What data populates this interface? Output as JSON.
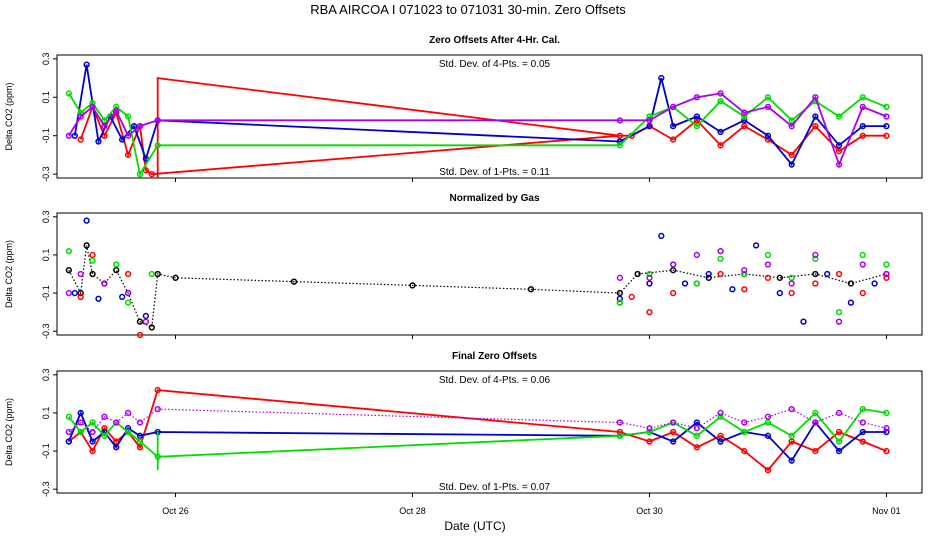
{
  "chart_data": {
    "type": "line",
    "title": "RBA   AIRCOA I   071023 to 071031   30-min. Zero Offsets",
    "xlabel": "Date (UTC)",
    "x_range": [
      25.0,
      32.3
    ],
    "x_ticks": [
      {
        "value": 26,
        "label": "Oct 26"
      },
      {
        "value": 28,
        "label": "Oct 28"
      },
      {
        "value": 30,
        "label": "Oct 30"
      },
      {
        "value": 32,
        "label": "Nov 01"
      }
    ],
    "y_ticks": [
      {
        "value": 0.3,
        "label": "0.3"
      },
      {
        "value": 0.1,
        "label": "0.1"
      },
      {
        "value": -0.1,
        "label": "-0.1"
      },
      {
        "value": -0.3,
        "label": "-0.3"
      }
    ],
    "colors": {
      "red": "#ff0000",
      "blue": "#0000cc",
      "green": "#00dd00",
      "purple": "#aa00ee",
      "black": "#000000"
    },
    "panels": [
      {
        "title": "Zero Offsets After 4-Hr. Cal.",
        "ylabel": "Delta CO2 (ppm)",
        "ylim": [
          -0.32,
          0.32
        ],
        "annotations": {
          "top": "Std. Dev. of 4-Pts. =  0.05",
          "bottom": "Std. Dev. of 1-Pts. =  0.11"
        },
        "series": [
          {
            "name": "red",
            "color": "red",
            "x": [
              25.2,
              25.3,
              25.4,
              25.5,
              25.6,
              25.7,
              25.75,
              25.8,
              29.75,
              29.85,
              30.0,
              30.2,
              30.4,
              30.6,
              30.8,
              31.0,
              31.2,
              31.4,
              31.6,
              31.8,
              32.0
            ],
            "y": [
              -0.12,
              0.05,
              -0.1,
              0.02,
              -0.2,
              -0.05,
              -0.28,
              -0.3,
              -0.1,
              -0.1,
              -0.05,
              -0.12,
              -0.02,
              -0.15,
              -0.05,
              -0.12,
              -0.2,
              -0.05,
              -0.18,
              -0.1,
              -0.1
            ]
          },
          {
            "name": "red-jump",
            "color": "red",
            "x": [
              25.85,
              25.85,
              29.75
            ],
            "y": [
              -0.32,
              0.2,
              -0.1
            ]
          },
          {
            "name": "blue",
            "color": "blue",
            "x": [
              25.15,
              25.25,
              25.35,
              25.45,
              25.55,
              25.65,
              25.75,
              25.85,
              29.75,
              30.0,
              30.1,
              30.2,
              30.4,
              30.6,
              30.8,
              31.0,
              31.2,
              31.4,
              31.6,
              31.8,
              32.0
            ],
            "y": [
              -0.1,
              0.27,
              -0.13,
              0.0,
              -0.12,
              -0.05,
              -0.22,
              -0.02,
              -0.13,
              -0.05,
              0.2,
              -0.05,
              0.0,
              -0.08,
              -0.02,
              -0.1,
              -0.25,
              0.0,
              -0.15,
              -0.05,
              -0.05
            ]
          },
          {
            "name": "green",
            "color": "green",
            "x": [
              25.1,
              25.2,
              25.3,
              25.4,
              25.5,
              25.6,
              25.7,
              25.85,
              29.75,
              30.0,
              30.2,
              30.4,
              30.6,
              30.8,
              31.0,
              31.2,
              31.4,
              31.6,
              31.8,
              32.0
            ],
            "y": [
              0.12,
              0.02,
              0.07,
              -0.02,
              0.05,
              0.0,
              -0.3,
              -0.15,
              -0.15,
              0.0,
              0.05,
              -0.05,
              0.08,
              0.0,
              0.1,
              -0.02,
              0.08,
              0.0,
              0.1,
              0.05
            ]
          },
          {
            "name": "purple",
            "color": "purple",
            "x": [
              25.1,
              25.2,
              25.3,
              25.4,
              25.5,
              25.6,
              25.7,
              25.85,
              29.75,
              30.0,
              30.2,
              30.4,
              30.6,
              30.8,
              31.0,
              31.2,
              31.4,
              31.6,
              31.8,
              32.0
            ],
            "y": [
              -0.1,
              0.0,
              0.05,
              -0.05,
              0.03,
              -0.1,
              -0.05,
              -0.02,
              -0.02,
              -0.02,
              0.05,
              0.1,
              0.12,
              0.02,
              0.05,
              -0.05,
              0.1,
              -0.25,
              0.05,
              0.0
            ]
          }
        ]
      },
      {
        "title": "Normalized by Gas",
        "ylabel": "Delta CO2 (ppm)",
        "ylim": [
          -0.32,
          0.32
        ],
        "annotations": {
          "top": "",
          "bottom": ""
        },
        "series": [
          {
            "name": "black",
            "color": "black",
            "dotted": true,
            "x": [
              25.1,
              25.2,
              25.25,
              25.3,
              25.4,
              25.5,
              25.6,
              25.7,
              25.8,
              25.85,
              26.0,
              27.0,
              28.0,
              29.0,
              29.75,
              29.9,
              30.2,
              30.5,
              30.8,
              31.1,
              31.4,
              31.7,
              32.0
            ],
            "y": [
              0.02,
              -0.1,
              0.15,
              0.0,
              -0.05,
              0.02,
              -0.1,
              -0.25,
              -0.28,
              0.0,
              -0.02,
              -0.04,
              -0.06,
              -0.08,
              -0.1,
              0.0,
              0.02,
              -0.02,
              0.0,
              -0.02,
              0.0,
              -0.05,
              0.0
            ]
          },
          {
            "name": "red",
            "color": "red",
            "markers_only": true,
            "x": [
              25.2,
              25.3,
              25.4,
              25.6,
              25.7,
              29.75,
              29.85,
              30.0,
              30.2,
              30.4,
              30.6,
              30.8,
              31.0,
              31.2,
              31.4,
              31.6,
              31.8,
              32.0
            ],
            "y": [
              -0.12,
              0.1,
              -0.05,
              0.0,
              -0.32,
              -0.15,
              -0.12,
              -0.2,
              -0.1,
              -0.05,
              0.0,
              -0.08,
              -0.02,
              -0.1,
              -0.05,
              0.0,
              -0.1,
              -0.02
            ]
          },
          {
            "name": "blue",
            "color": "blue",
            "markers_only": true,
            "x": [
              25.15,
              25.25,
              25.35,
              25.55,
              25.75,
              29.75,
              30.0,
              30.1,
              30.3,
              30.5,
              30.7,
              30.9,
              31.1,
              31.3,
              31.5,
              31.7,
              31.9
            ],
            "y": [
              -0.1,
              0.28,
              -0.13,
              -0.12,
              -0.22,
              -0.13,
              -0.05,
              0.2,
              -0.05,
              0.0,
              -0.08,
              0.15,
              -0.1,
              -0.25,
              0.0,
              -0.15,
              -0.05
            ]
          },
          {
            "name": "green",
            "color": "green",
            "markers_only": true,
            "x": [
              25.1,
              25.3,
              25.5,
              25.6,
              25.8,
              29.75,
              30.0,
              30.2,
              30.4,
              30.6,
              30.8,
              31.0,
              31.2,
              31.4,
              31.6,
              31.8,
              32.0
            ],
            "y": [
              0.12,
              0.07,
              0.05,
              -0.15,
              0.0,
              -0.15,
              0.0,
              0.05,
              -0.05,
              0.08,
              0.0,
              0.1,
              -0.02,
              0.08,
              -0.2,
              0.1,
              0.05
            ]
          },
          {
            "name": "purple",
            "color": "purple",
            "markers_only": true,
            "x": [
              25.1,
              25.2,
              25.4,
              25.6,
              25.75,
              29.75,
              30.0,
              30.2,
              30.4,
              30.6,
              30.8,
              31.0,
              31.2,
              31.4,
              31.6,
              31.8,
              32.0
            ],
            "y": [
              -0.1,
              0.0,
              -0.05,
              -0.1,
              -0.25,
              -0.02,
              -0.02,
              0.05,
              0.1,
              0.12,
              0.02,
              0.05,
              -0.05,
              0.1,
              -0.25,
              0.05,
              0.0
            ]
          }
        ]
      },
      {
        "title": "Final Zero Offsets",
        "ylabel": "Delta CO2 (ppm)",
        "ylim": [
          -0.32,
          0.32
        ],
        "annotations": {
          "top": "Std. Dev. of 4-Pts. =  0.06",
          "bottom": "Std. Dev. of 1-Pts. =  0.07"
        },
        "series": [
          {
            "name": "red",
            "color": "red",
            "x": [
              25.1,
              25.2,
              25.3,
              25.4,
              25.5,
              25.6,
              25.7,
              25.85,
              29.75,
              30.0,
              30.2,
              30.4,
              30.6,
              30.8,
              31.0,
              31.2,
              31.4,
              31.6,
              31.8,
              32.0
            ],
            "y": [
              -0.05,
              0.0,
              -0.1,
              0.02,
              -0.05,
              0.0,
              -0.08,
              0.22,
              0.0,
              -0.05,
              0.0,
              -0.08,
              -0.02,
              -0.1,
              -0.2,
              -0.05,
              -0.1,
              0.0,
              -0.05,
              -0.1
            ]
          },
          {
            "name": "blue",
            "color": "blue",
            "x": [
              25.1,
              25.2,
              25.3,
              25.4,
              25.5,
              25.6,
              25.7,
              25.85,
              29.75,
              30.0,
              30.2,
              30.4,
              30.6,
              30.8,
              31.0,
              31.2,
              31.4,
              31.6,
              31.8,
              32.0
            ],
            "y": [
              -0.05,
              0.1,
              -0.05,
              0.0,
              -0.08,
              0.02,
              -0.02,
              0.0,
              -0.02,
              0.0,
              -0.05,
              0.05,
              -0.05,
              0.0,
              -0.02,
              -0.15,
              0.05,
              -0.1,
              0.0,
              0.0
            ]
          },
          {
            "name": "green",
            "color": "green",
            "x": [
              25.1,
              25.2,
              25.3,
              25.4,
              25.5,
              25.6,
              25.7,
              25.85,
              29.75,
              30.0,
              30.2,
              30.4,
              30.6,
              30.8,
              31.0,
              31.2,
              31.4,
              31.6,
              31.8,
              32.0
            ],
            "y": [
              0.08,
              0.0,
              0.05,
              -0.02,
              0.05,
              0.0,
              -0.05,
              -0.13,
              -0.02,
              0.0,
              0.05,
              -0.02,
              0.08,
              0.0,
              0.05,
              -0.02,
              0.1,
              -0.05,
              0.12,
              0.1
            ]
          },
          {
            "name": "green-drop",
            "color": "green",
            "x": [
              25.85,
              25.85
            ],
            "y": [
              0.0,
              -0.2
            ]
          },
          {
            "name": "purple",
            "color": "purple",
            "dotted": true,
            "x": [
              25.1,
              25.2,
              25.3,
              25.4,
              25.5,
              25.6,
              25.7,
              25.85,
              29.75,
              30.0,
              30.2,
              30.4,
              30.6,
              30.8,
              31.0,
              31.2,
              31.4,
              31.6,
              31.8,
              32.0
            ],
            "y": [
              0.0,
              0.05,
              0.0,
              0.08,
              0.05,
              0.1,
              0.05,
              0.12,
              0.05,
              0.02,
              0.05,
              0.02,
              0.1,
              0.05,
              0.08,
              0.12,
              0.05,
              0.1,
              0.05,
              0.02
            ]
          }
        ]
      }
    ]
  }
}
